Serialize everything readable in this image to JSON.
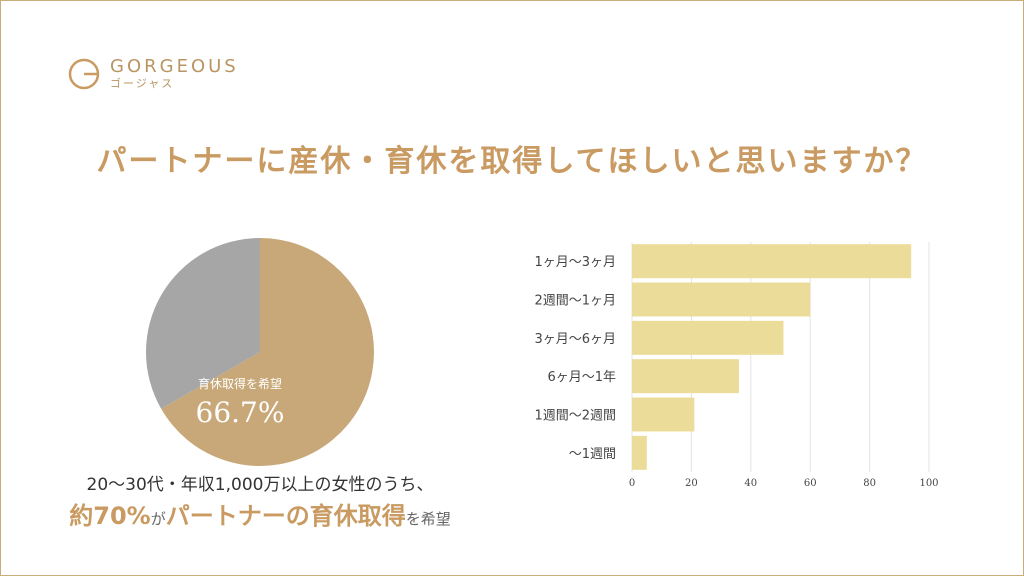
{
  "brand": {
    "name_en": "GORGEOUS",
    "name_ja": "ゴージャス"
  },
  "title": "パートナーに産休・育休を取得してほしいと思いますか？",
  "colors": {
    "accent": "#c99a61",
    "pie_main": "#c8a878",
    "pie_rest": "#a6a6a6",
    "bar": "#ecdc9a"
  },
  "chart_data": [
    {
      "type": "pie",
      "slices": [
        {
          "label": "育休取得を希望",
          "value": 66.7
        },
        {
          "label": "",
          "value": 33.3
        }
      ],
      "center_label": "育休取得を希望",
      "center_value": "66.7%"
    },
    {
      "type": "bar",
      "orientation": "horizontal",
      "categories": [
        "1ヶ月〜3ヶ月",
        "2週間〜1ヶ月",
        "3ヶ月〜6ヶ月",
        "6ヶ月〜1年",
        "1週間〜2週間",
        "〜1週間"
      ],
      "values": [
        94,
        60,
        51,
        36,
        21,
        5
      ],
      "xlim": [
        0,
        100
      ],
      "xticks": [
        0,
        20,
        40,
        60,
        80,
        100
      ],
      "grid": true
    }
  ],
  "caption": {
    "line1": "20〜30代・年収1,000万以上の女性のうち、",
    "part1": "約70%",
    "part2": "が",
    "part3": "パートナーの育休取得",
    "part4": "を希望"
  }
}
